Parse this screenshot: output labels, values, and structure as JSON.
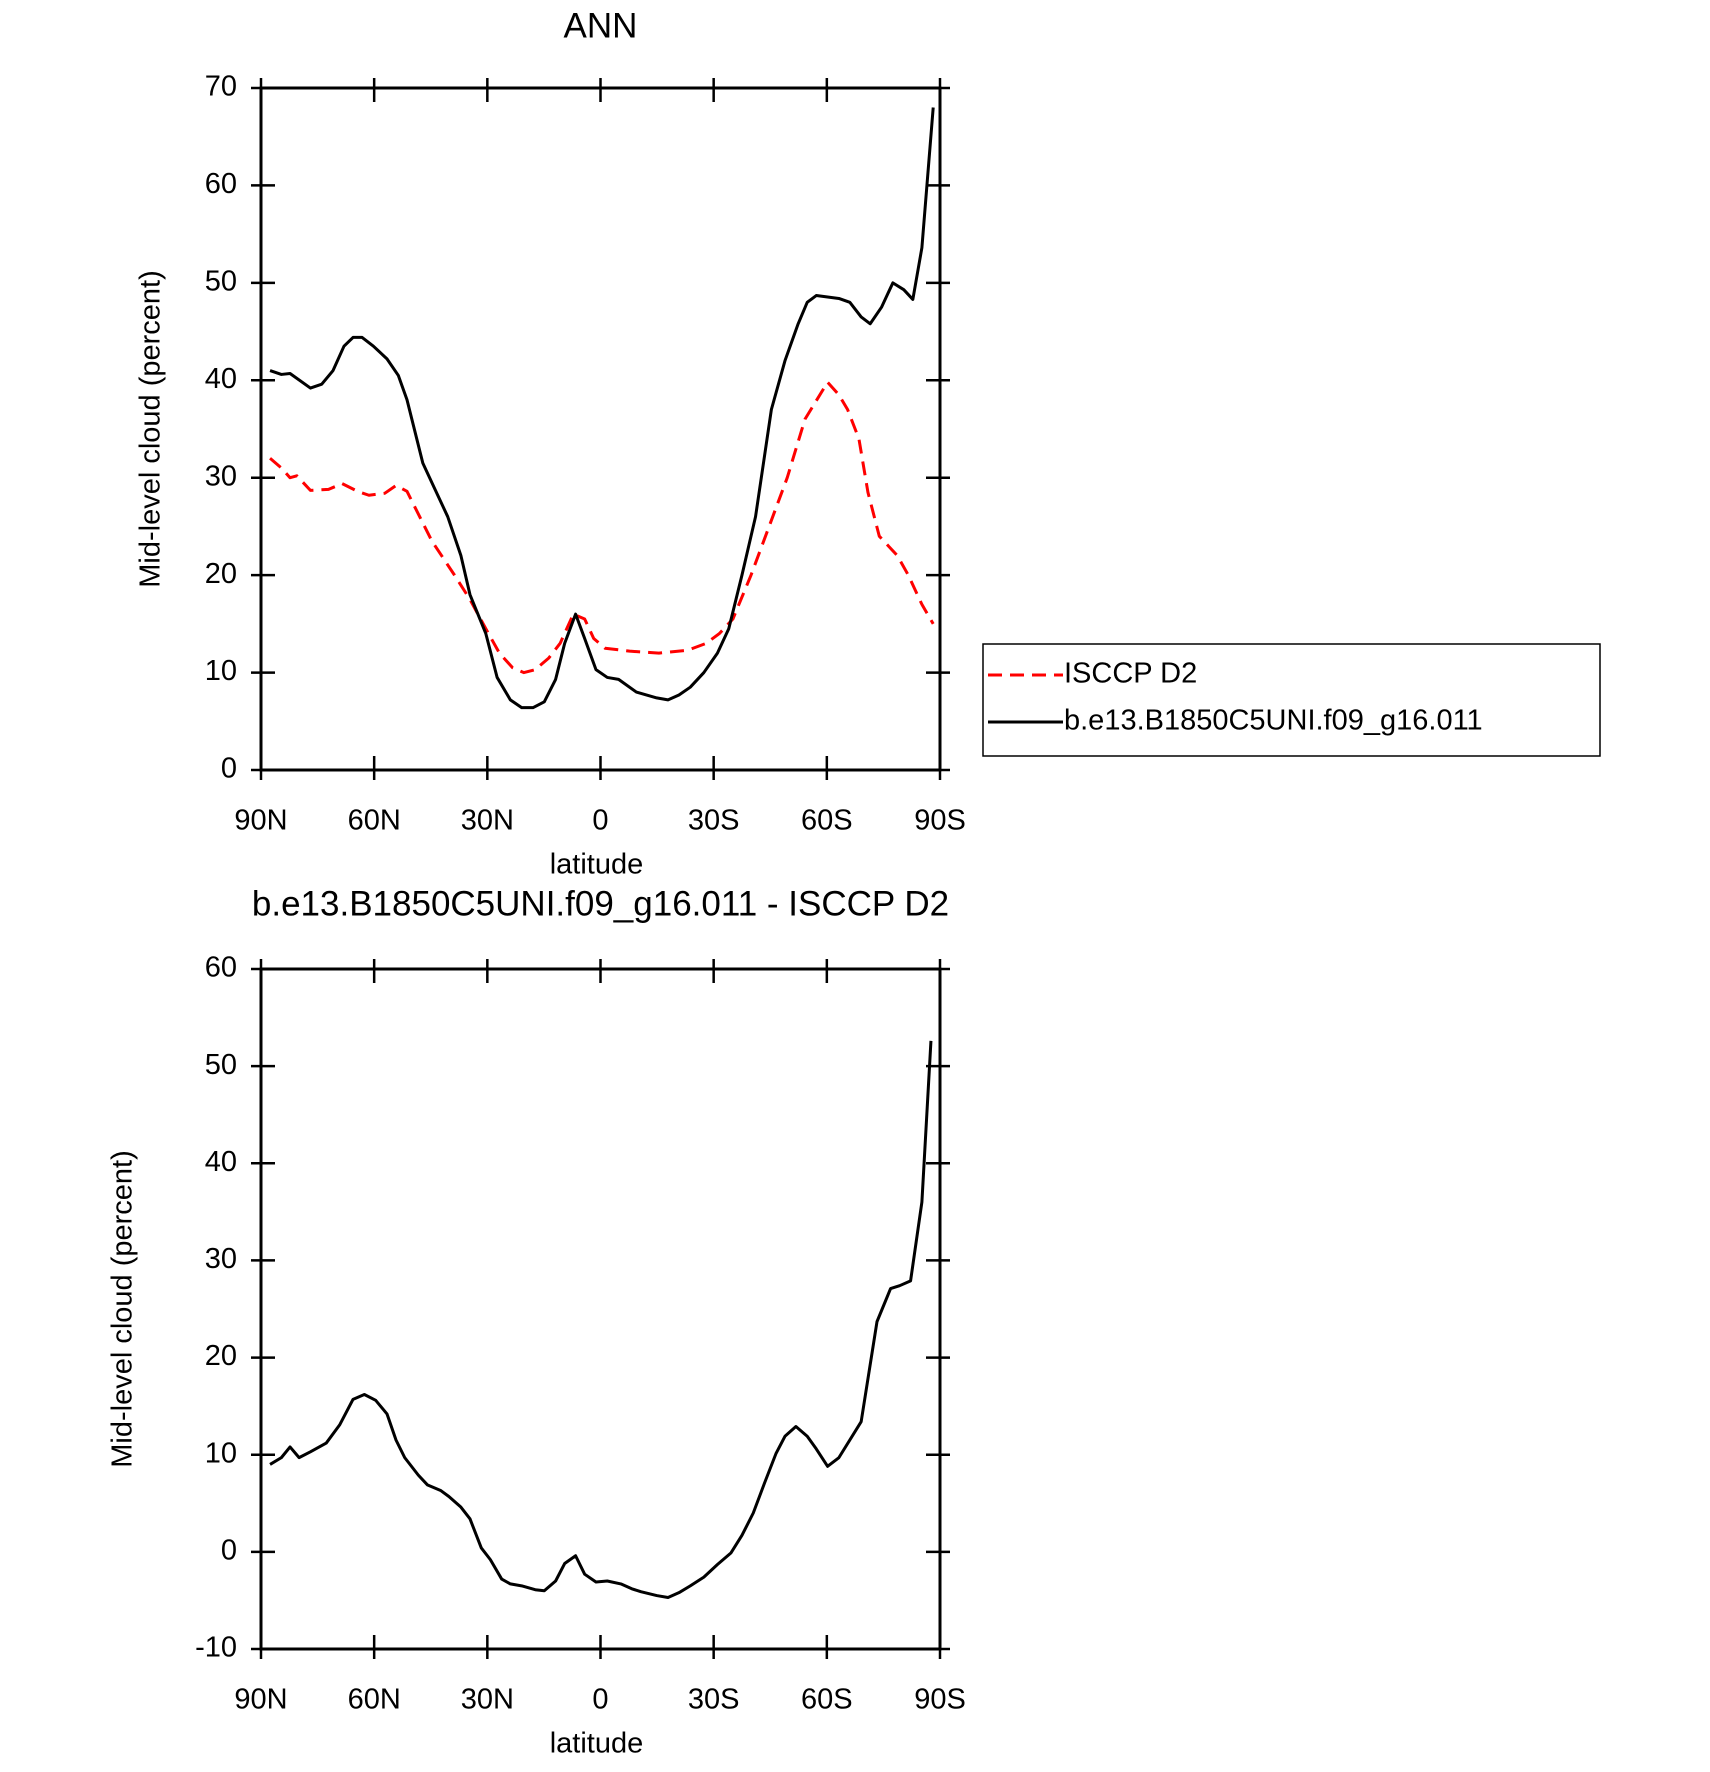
{
  "chart_data": [
    {
      "type": "line",
      "title": "ANN",
      "xlabel": "latitude",
      "ylabel": "Mid-level cloud (percent)",
      "xlim": [
        90,
        -90
      ],
      "xticks": [
        {
          "value": 90,
          "label": "90N"
        },
        {
          "value": 60,
          "label": "60N"
        },
        {
          "value": 30,
          "label": "30N"
        },
        0,
        {
          "value": -30,
          "label": "30S"
        },
        {
          "value": -60,
          "label": "60S"
        },
        {
          "value": -90,
          "label": "90S"
        }
      ],
      "ylim": [
        0,
        70
      ],
      "yticks": [
        0,
        10,
        20,
        30,
        40,
        50,
        60,
        70
      ],
      "legend": "right",
      "series": [
        {
          "name": "ISCCP D2",
          "color": "#ff0000",
          "dash": true,
          "x": [
            87.6,
            84.6,
            82.3,
            80.5,
            76.9,
            72.1,
            68.5,
            64.4,
            61.4,
            57.2,
            54.2,
            51.3,
            44.7,
            38.7,
            34.6,
            30.4,
            26.8,
            23.3,
            20.3,
            17.3,
            13.7,
            10.7,
            7.2,
            4.2,
            1.8,
            -1.2,
            -7.7,
            -15.5,
            -23.2,
            -28,
            -31.5,
            -35.1,
            -39.9,
            -44.7,
            -49.5,
            -54.2,
            -60.2,
            -63.2,
            -65.5,
            -68.5,
            -70.9,
            -73.9,
            -78.7,
            -81.6,
            -85.2,
            -88.2
          ],
          "values": [
            32,
            31,
            30,
            30.2,
            28.7,
            28.8,
            29.4,
            28.6,
            28.2,
            28.4,
            29.2,
            28.6,
            23.5,
            20,
            17.5,
            14.5,
            12,
            10.5,
            10,
            10.3,
            11.5,
            13,
            16,
            15.5,
            13.5,
            12.5,
            12.2,
            12,
            12.3,
            13,
            14,
            15.5,
            20,
            25,
            30,
            36,
            39.8,
            38.5,
            37,
            34,
            28.5,
            24,
            22,
            20,
            17,
            15
          ]
        },
        {
          "name": "b.e13.B1850C5UNI.f09_g16.011",
          "color": "#000000",
          "dash": false,
          "x": [
            87.6,
            84.6,
            82.3,
            76.9,
            73.9,
            70.9,
            68,
            65.6,
            63.2,
            60.2,
            56.6,
            53.6,
            51.3,
            47.1,
            44.1,
            40.5,
            37,
            34.6,
            30.4,
            27.4,
            23.9,
            20.9,
            17.9,
            14.9,
            11.9,
            9.5,
            6.6,
            4.2,
            1.2,
            -1.8,
            -4.8,
            -9.5,
            -14.9,
            -17.9,
            -20.8,
            -23.8,
            -27.4,
            -31,
            -34,
            -37.5,
            -41.1,
            -45.3,
            -48.9,
            -52.4,
            -54.8,
            -57.2,
            -63.2,
            -66.1,
            -69.1,
            -71.5,
            -74.5,
            -77.5,
            -80.4,
            -82.8,
            -85.2,
            -88.2
          ],
          "values": [
            41,
            40.6,
            40.7,
            39.2,
            39.6,
            41,
            43.5,
            44.4,
            44.4,
            43.5,
            42.2,
            40.5,
            38,
            31.5,
            29,
            26,
            22,
            18,
            14,
            9.5,
            7.2,
            6.4,
            6.4,
            7,
            9.3,
            13,
            16,
            13.5,
            10.3,
            9.5,
            9.3,
            8,
            7.4,
            7.2,
            7.7,
            8.5,
            10,
            12,
            14.5,
            20,
            26,
            37,
            42,
            45.8,
            48,
            48.7,
            48.4,
            48,
            46.5,
            45.8,
            47.5,
            50,
            49.3,
            48.3,
            53.6,
            68
          ]
        }
      ]
    },
    {
      "type": "line",
      "title": "b.e13.B1850C5UNI.f09_g16.011 - ISCCP D2",
      "xlabel": "latitude",
      "ylabel": "Mid-level cloud (percent)",
      "xlim": [
        90,
        -90
      ],
      "xticks": [
        {
          "value": 90,
          "label": "90N"
        },
        {
          "value": 60,
          "label": "60N"
        },
        {
          "value": 30,
          "label": "30N"
        },
        0,
        {
          "value": -30,
          "label": "30S"
        },
        {
          "value": -60,
          "label": "60S"
        },
        {
          "value": -90,
          "label": "90S"
        }
      ],
      "ylim": [
        -10,
        60
      ],
      "yticks": [
        -10,
        0,
        10,
        20,
        30,
        40,
        50,
        60
      ],
      "color": "#000000",
      "x": [
        87.6,
        84.6,
        82.3,
        79.9,
        76.9,
        72.7,
        69.1,
        65.6,
        62.6,
        59.6,
        56.6,
        54.2,
        51.9,
        48.3,
        45.9,
        42.3,
        40.2,
        37,
        34.6,
        31.6,
        29.2,
        26.2,
        23.9,
        20.9,
        17.3,
        14.9,
        11.9,
        9.5,
        6.6,
        4.2,
        1.2,
        -1.8,
        -5.4,
        -8.3,
        -10.7,
        -14.9,
        -17.9,
        -20.8,
        -23.8,
        -27.4,
        -31,
        -34.6,
        -37.5,
        -40.5,
        -43.5,
        -46.5,
        -48.9,
        -51.8,
        -54.8,
        -57.2,
        -60.2,
        -63.2,
        -69.1,
        -73.3,
        -76.9,
        -79.3,
        -82.2,
        -85.2,
        -87.6
      ],
      "values": [
        9,
        9.7,
        10.8,
        9.7,
        10.3,
        11.2,
        13.1,
        15.7,
        16.2,
        15.6,
        14.2,
        11.5,
        9.7,
        7.9,
        6.9,
        6.3,
        5.7,
        4.6,
        3.4,
        0.4,
        -0.8,
        -2.8,
        -3.3,
        -3.5,
        -3.9,
        -4,
        -3,
        -1.2,
        -0.4,
        -2.3,
        -3.1,
        -3,
        -3.3,
        -3.8,
        -4.1,
        -4.5,
        -4.7,
        -4.2,
        -3.5,
        -2.6,
        -1.3,
        -0.1,
        1.7,
        4,
        7.1,
        10.1,
        11.9,
        12.9,
        11.9,
        10.6,
        8.8,
        9.7,
        13.4,
        23.7,
        27.1,
        27.4,
        27.9,
        36,
        52.6
      ]
    }
  ]
}
